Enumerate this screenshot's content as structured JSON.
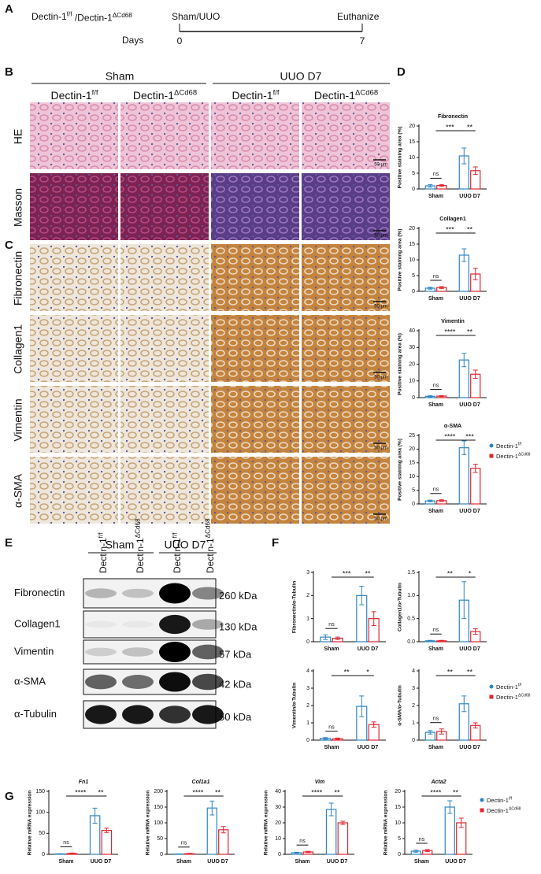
{
  "panel_labels": [
    "A",
    "B",
    "C",
    "D",
    "E",
    "F",
    "G"
  ],
  "timeline": {
    "groups": [
      {
        "name": "Dectin-1",
        "sup": "f/f"
      },
      {
        "name": "Dectin-1",
        "sup": "ΔCd68"
      }
    ],
    "separator": " /",
    "start_label": "Sham/UUO",
    "end_label": "Euthanize",
    "days_label": "Days",
    "day_start": 0,
    "day_end": 7
  },
  "histology": {
    "groups": [
      "Sham",
      "UUO D7"
    ],
    "columns": [
      {
        "name": "Dectin-1",
        "sup": "f/f"
      },
      {
        "name": "Dectin-1",
        "sup": "ΔCd68"
      },
      {
        "name": "Dectin-1",
        "sup": "f/f"
      },
      {
        "name": "Dectin-1",
        "sup": "ΔCd68"
      }
    ],
    "rows": [
      "HE",
      "Masson",
      "Fibronectin",
      "Collagen1",
      "Vimentin",
      "α-SMA"
    ],
    "scale_bar": "50 μm"
  },
  "western": {
    "groups": [
      "Sham",
      "UUO D7"
    ],
    "lanes": [
      {
        "name": "Dectin-1",
        "sup": "f/f"
      },
      {
        "name": "Dectin-1",
        "sup": "ΔCd68"
      },
      {
        "name": "Dectin-1",
        "sup": "f/f"
      },
      {
        "name": "Dectin-1",
        "sup": "ΔCd68"
      }
    ],
    "proteins": [
      {
        "name": "Fibronectin",
        "size": "260 kDa"
      },
      {
        "name": "Collagen1",
        "size": "130 kDa"
      },
      {
        "name": "Vimentin",
        "size": "57 kDa"
      },
      {
        "name": "α-SMA",
        "size": "42 kDa"
      },
      {
        "name": "α-Tubulin",
        "size": "50 kDa"
      }
    ]
  },
  "chart_data": [
    {
      "type": "bar",
      "title": "Fibronectin",
      "y_label": "Positive staining area (%)",
      "categories": [
        "Sham",
        "UUO D7"
      ],
      "series": [
        {
          "name": "Dectin-1",
          "sup": "f/f",
          "color": "#2e86c1",
          "values": [
            1.0,
            10.5
          ],
          "errors": [
            0.4,
            2.5
          ]
        },
        {
          "name": "Dectin-1",
          "sup": "ΔCd68",
          "color": "#e0262f",
          "values": [
            1.1,
            5.8
          ],
          "errors": [
            0.3,
            1.2
          ]
        }
      ],
      "ylim": [
        0,
        20
      ],
      "yticks": [
        0,
        5,
        10,
        15,
        20
      ],
      "significance": {
        "sham": "ns",
        "between": "***",
        "uuo": "**"
      }
    },
    {
      "type": "bar",
      "title": "Collagen1",
      "y_label": "Positive staining area (%)",
      "categories": [
        "Sham",
        "UUO D7"
      ],
      "series": [
        {
          "name": "Dectin-1",
          "sup": "f/f",
          "color": "#2e86c1",
          "values": [
            1.0,
            11.5
          ],
          "errors": [
            0.3,
            2.0
          ]
        },
        {
          "name": "Dectin-1",
          "sup": "ΔCd68",
          "color": "#e0262f",
          "values": [
            1.2,
            5.5
          ],
          "errors": [
            0.3,
            1.8
          ]
        }
      ],
      "ylim": [
        0,
        20
      ],
      "yticks": [
        0,
        5,
        10,
        15,
        20
      ],
      "significance": {
        "sham": "ns",
        "between": "***",
        "uuo": "**"
      }
    },
    {
      "type": "bar",
      "title": "Vimentin",
      "y_label": "Positive staining area (%)",
      "categories": [
        "Sham",
        "UUO D7"
      ],
      "series": [
        {
          "name": "Dectin-1",
          "sup": "f/f",
          "color": "#2e86c1",
          "values": [
            0.8,
            22.5
          ],
          "errors": [
            0.3,
            4.0
          ]
        },
        {
          "name": "Dectin-1",
          "sup": "ΔCd68",
          "color": "#e0262f",
          "values": [
            0.9,
            14
          ],
          "errors": [
            0.3,
            2.5
          ]
        }
      ],
      "ylim": [
        0,
        40
      ],
      "yticks": [
        0,
        10,
        20,
        30,
        40
      ],
      "significance": {
        "sham": "ns",
        "between": "****",
        "uuo": "**"
      }
    },
    {
      "type": "bar",
      "title": "α-SMA",
      "y_label": "Positive staining area (%)",
      "categories": [
        "Sham",
        "UUO D7"
      ],
      "series": [
        {
          "name": "Dectin-1",
          "sup": "f/f",
          "color": "#2e86c1",
          "values": [
            1.1,
            20.5
          ],
          "errors": [
            0.3,
            2.5
          ]
        },
        {
          "name": "Dectin-1",
          "sup": "ΔCd68",
          "color": "#e0262f",
          "values": [
            1.2,
            13
          ],
          "errors": [
            0.3,
            1.5
          ]
        }
      ],
      "ylim": [
        0,
        25
      ],
      "yticks": [
        0,
        5,
        10,
        15,
        20,
        25
      ],
      "significance": {
        "sham": "ns",
        "between": "****",
        "uuo": "***"
      },
      "legend": true
    },
    {
      "type": "bar",
      "y_label": "Fibronectin/α-Tubulin",
      "categories": [
        "Sham",
        "UUO D7"
      ],
      "series": [
        {
          "name": "Dectin-1",
          "sup": "f/f",
          "color": "#2e86c1",
          "values": [
            0.2,
            2.0
          ],
          "errors": [
            0.1,
            0.4
          ]
        },
        {
          "name": "Dectin-1",
          "sup": "ΔCd68",
          "color": "#e0262f",
          "values": [
            0.15,
            1.0
          ],
          "errors": [
            0.05,
            0.3
          ]
        }
      ],
      "ylim": [
        0,
        3
      ],
      "yticks": [
        0,
        1,
        2,
        3
      ],
      "significance": {
        "sham": "ns",
        "between": "***",
        "uuo": "**"
      }
    },
    {
      "type": "bar",
      "y_label": "Collagen1/α-Tubulin",
      "categories": [
        "Sham",
        "UUO D7"
      ],
      "series": [
        {
          "name": "Dectin-1",
          "sup": "f/f",
          "color": "#2e86c1",
          "values": [
            0.02,
            0.9
          ],
          "errors": [
            0.01,
            0.4
          ]
        },
        {
          "name": "Dectin-1",
          "sup": "ΔCd68",
          "color": "#e0262f",
          "values": [
            0.02,
            0.22
          ],
          "errors": [
            0.01,
            0.06
          ]
        }
      ],
      "ylim": [
        0,
        1.5
      ],
      "yticks": [
        {
          "value": 0,
          "label": "0.0"
        },
        {
          "value": 0.5,
          "label": "0.5"
        },
        {
          "value": 1,
          "label": "1.0"
        },
        {
          "value": 1.5,
          "label": "1.5"
        }
      ],
      "significance": {
        "sham": "ns",
        "between": "**",
        "uuo": "*"
      }
    },
    {
      "type": "bar",
      "y_label": "Vimentin/α-Tubulin",
      "categories": [
        "Sham",
        "UUO D7"
      ],
      "series": [
        {
          "name": "Dectin-1",
          "sup": "f/f",
          "color": "#2e86c1",
          "values": [
            0.1,
            1.95
          ],
          "errors": [
            0.05,
            0.6
          ]
        },
        {
          "name": "Dectin-1",
          "sup": "ΔCd68",
          "color": "#e0262f",
          "values": [
            0.08,
            0.9
          ],
          "errors": [
            0.04,
            0.15
          ]
        }
      ],
      "ylim": [
        0,
        4
      ],
      "yticks": [
        0,
        1,
        2,
        3,
        4
      ],
      "significance": {
        "sham": "ns",
        "between": "**",
        "uuo": "*"
      }
    },
    {
      "type": "bar",
      "y_label": "α-SMA/α-Tubulin",
      "categories": [
        "Sham",
        "UUO D7"
      ],
      "series": [
        {
          "name": "Dectin-1",
          "sup": "f/f",
          "color": "#2e86c1",
          "values": [
            0.45,
            2.1
          ],
          "errors": [
            0.1,
            0.45
          ]
        },
        {
          "name": "Dectin-1",
          "sup": "ΔCd68",
          "color": "#e0262f",
          "values": [
            0.5,
            0.85
          ],
          "errors": [
            0.15,
            0.15
          ]
        }
      ],
      "ylim": [
        0,
        4
      ],
      "yticks": [
        0,
        1,
        2,
        3,
        4
      ],
      "significance": {
        "sham": "ns",
        "between": "**",
        "uuo": "**"
      },
      "legend": true
    },
    {
      "type": "bar",
      "title": "Fn1",
      "title_italic": true,
      "y_label": "Relative mRNA expression",
      "categories": [
        "Sham",
        "UUO D7"
      ],
      "series": [
        {
          "name": "Dectin-1",
          "sup": "f/f",
          "color": "#2e86c1",
          "values": [
            1,
            92
          ],
          "errors": [
            0.5,
            18
          ]
        },
        {
          "name": "Dectin-1",
          "sup": "ΔCd68",
          "color": "#e0262f",
          "values": [
            2,
            57
          ],
          "errors": [
            1,
            5
          ]
        }
      ],
      "ylim": [
        0,
        150
      ],
      "yticks": [
        0,
        50,
        100,
        150
      ],
      "significance": {
        "sham": "ns",
        "between": "****",
        "uuo": "**"
      }
    },
    {
      "type": "bar",
      "title": "Col1a1",
      "title_italic": true,
      "y_label": "Relative mRNA expression",
      "categories": [
        "Sham",
        "UUO D7"
      ],
      "series": [
        {
          "name": "Dectin-1",
          "sup": "f/f",
          "color": "#2e86c1",
          "values": [
            1,
            147
          ],
          "errors": [
            0.5,
            22
          ]
        },
        {
          "name": "Dectin-1",
          "sup": "ΔCd68",
          "color": "#e0262f",
          "values": [
            2,
            78
          ],
          "errors": [
            1,
            10
          ]
        }
      ],
      "ylim": [
        0,
        200
      ],
      "yticks": [
        0,
        50,
        100,
        150,
        200
      ],
      "significance": {
        "sham": "ns",
        "between": "****",
        "uuo": "**"
      }
    },
    {
      "type": "bar",
      "title": "Vim",
      "title_italic": true,
      "y_label": "Relative mRNA expression",
      "categories": [
        "Sham",
        "UUO D7"
      ],
      "series": [
        {
          "name": "Dectin-1",
          "sup": "f/f",
          "color": "#2e86c1",
          "values": [
            1,
            28.5
          ],
          "errors": [
            0.3,
            4
          ]
        },
        {
          "name": "Dectin-1",
          "sup": "ΔCd68",
          "color": "#e0262f",
          "values": [
            1.5,
            20
          ],
          "errors": [
            0.4,
            1
          ]
        }
      ],
      "ylim": [
        0,
        40
      ],
      "yticks": [
        0,
        10,
        20,
        30,
        40
      ],
      "significance": {
        "sham": "ns",
        "between": "****",
        "uuo": "**"
      }
    },
    {
      "type": "bar",
      "title": "Acta2",
      "title_italic": true,
      "y_label": "Relative mRNA expression",
      "categories": [
        "Sham",
        "UUO D7"
      ],
      "series": [
        {
          "name": "Dectin-1",
          "sup": "f/f",
          "color": "#2e86c1",
          "values": [
            1,
            15
          ],
          "errors": [
            0.3,
            2
          ]
        },
        {
          "name": "Dectin-1",
          "sup": "ΔCd68",
          "color": "#e0262f",
          "values": [
            1.2,
            10
          ],
          "errors": [
            0.3,
            1.5
          ]
        }
      ],
      "ylim": [
        0,
        20
      ],
      "yticks": [
        0,
        5,
        10,
        15,
        20
      ],
      "significance": {
        "sham": "ns",
        "between": "****",
        "uuo": "**"
      },
      "legend": true
    }
  ]
}
